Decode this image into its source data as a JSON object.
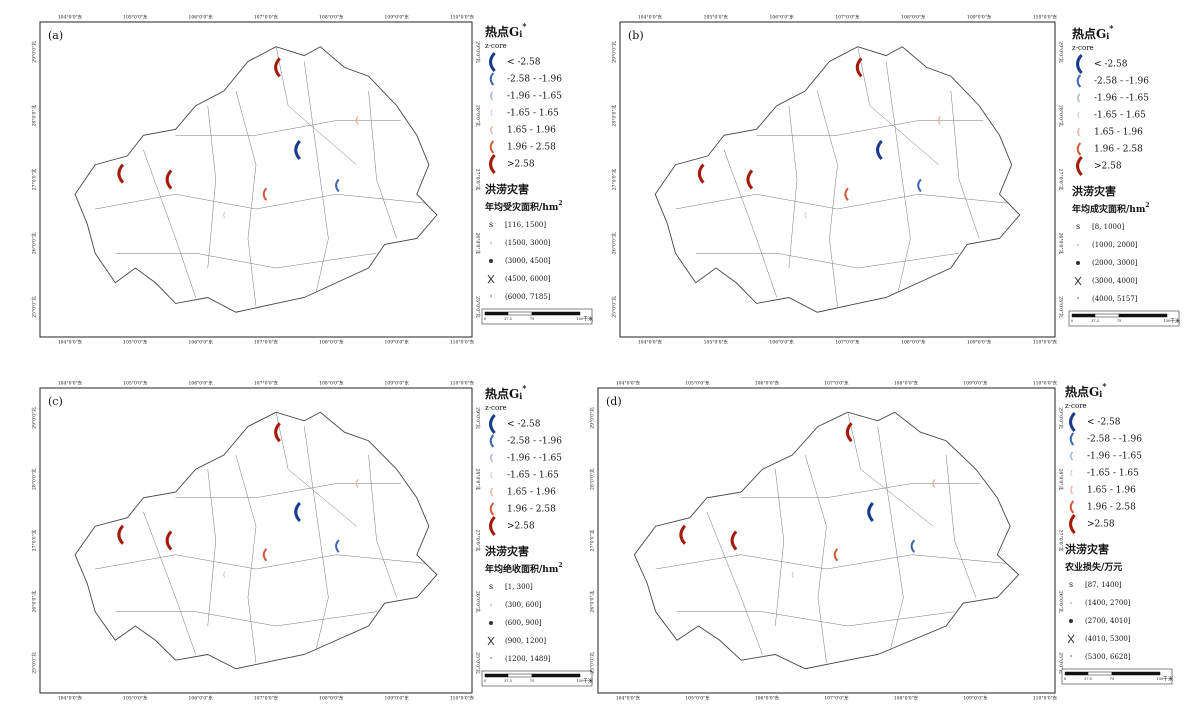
{
  "lon_labels": [
    "104°0'0\"东",
    "105°0'0\"东",
    "106°0'0\"东",
    "107°0'0\"东",
    "108°0'0\"东",
    "109°0'0\"东",
    "110°0'0\"东"
  ],
  "lat_labels": [
    "29°0'0\"北",
    "28°0'0\"北",
    "27°0'0\"北",
    "26°0'0\"北",
    "25°0'0\"北"
  ],
  "panels": [
    {
      "label": "(a)",
      "hotspot_title": "热点G",
      "hotspot_sub": "i",
      "hotspot_sup": "*",
      "zscore": "z-core",
      "classes": [
        "< -2.58",
        "-2.58 - -1.96",
        "-1.96 - -1.65",
        "-1.65 - 1.65",
        "1.65 - 1.96",
        "1.96 - 2.58",
        ">2.58"
      ],
      "hazard": "洪涝灾害",
      "measure": "年均受灾面积/hm",
      "measure_sup": "2",
      "ranges": [
        "[116, 1500]",
        "(1500, 3000]",
        "(3000, 4500]",
        "(4500, 6000]",
        "(6000, 7185]"
      ],
      "scale": [
        "0",
        "37.5",
        "75",
        "150",
        "千米"
      ]
    },
    {
      "label": "(b)",
      "hotspot_title": "热点G",
      "hotspot_sub": "i",
      "hotspot_sup": "*",
      "zscore": "z-core",
      "classes": [
        "< -2.58",
        "-2.58 - -1.96",
        "-1.96 - -1.65",
        "-1.65 - 1.65",
        "1.65 - 1.96",
        "1.96 - 2.58",
        ">2.58"
      ],
      "hazard": "洪涝灾害",
      "measure": "年均成灾面积/hm",
      "measure_sup": "2",
      "ranges": [
        "[8, 1000]",
        "(1000, 2000]",
        "(2000, 3000]",
        "(3000, 4000]",
        "(4000, 5157]"
      ],
      "scale": [
        "0",
        "37.5",
        "75",
        "150",
        "千米"
      ]
    },
    {
      "label": "(c)",
      "hotspot_title": "热点G",
      "hotspot_sub": "i",
      "hotspot_sup": "*",
      "zscore": "z-core",
      "classes": [
        "< -2.58",
        "-2.58 - -1.96",
        "-1.96 - -1.65",
        "-1.65 - 1.65",
        "1.65 - 1.96",
        "1.96 - 2.58",
        ">2.58"
      ],
      "hazard": "洪涝灾害",
      "measure": "年均绝收面积/hm",
      "measure_sup": "2",
      "ranges": [
        "[1, 300]",
        "(300, 600]",
        "(600, 900]",
        "(900, 1200]",
        "(1200, 1489]"
      ],
      "scale": [
        "0",
        "37.5",
        "75",
        "150",
        "千米"
      ]
    },
    {
      "label": "(d)",
      "hotspot_title": "热点G",
      "hotspot_sub": "i",
      "hotspot_sup": "*",
      "zscore": "z-core",
      "classes": [
        "< -2.58",
        "-2.58 - -1.96",
        "-1.96 - -1.65",
        "-1.65 - 1.65",
        "1.65 - 1.96",
        "1.96 - 2.58",
        ">2.58"
      ],
      "hazard": "洪涝灾害",
      "measure": "农业损失/万元",
      "ranges": [
        "[87, 1400]",
        "(1400, 2700]",
        "(2700, 4010]",
        "(4010, 5300]",
        "(5300, 6628]"
      ],
      "scale": [
        "0",
        "37.5",
        "75",
        "150",
        "千米"
      ]
    }
  ]
}
